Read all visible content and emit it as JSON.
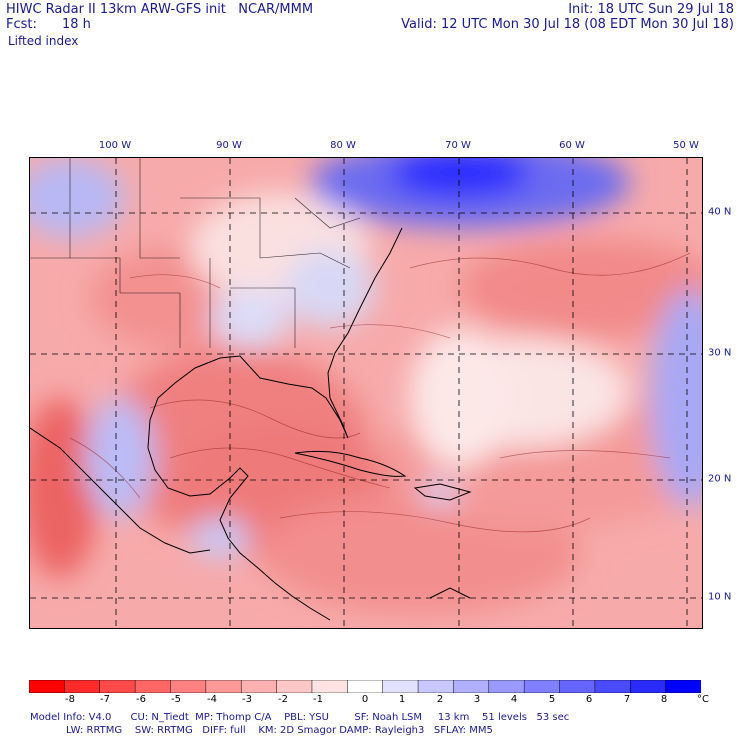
{
  "header": {
    "line1_left": "HIWC Radar II 13km ARW-GFS init   NCAR/MMM",
    "line1_right": "Init: 18 UTC Sun 29 Jul 18",
    "fcst_label": "Fcst:",
    "fcst_value": "18 h",
    "valid": "Valid: 12 UTC Mon 30 Jul 18 (08 EDT Mon 30 Jul 18)",
    "field": "Lifted index"
  },
  "lon_labels": [
    "100 W",
    "90 W",
    "80 W",
    "70 W",
    "60 W",
    "50 W"
  ],
  "lat_labels": [
    "40 N",
    "30 N",
    "20 N",
    "10 N"
  ],
  "colorbar": {
    "colors": [
      "#ff0000",
      "#ff2a2a",
      "#ff4a4a",
      "#ff6666",
      "#ff8080",
      "#ff9999",
      "#ffb0b0",
      "#ffc8c8",
      "#ffe2e2",
      "#ffffff",
      "#e2e2ff",
      "#c8c8ff",
      "#b0b0ff",
      "#9999ff",
      "#8080ff",
      "#6666ff",
      "#4a4aff",
      "#2a2aff",
      "#0000ff"
    ],
    "labels": [
      "-8",
      "-7",
      "-6",
      "-5",
      "-4",
      "-3",
      "-2",
      "-1",
      "0",
      "1",
      "2",
      "3",
      "4",
      "5",
      "6",
      "7",
      "8"
    ],
    "unit": "°C"
  },
  "footer": {
    "line1": "Model Info: V4.0      CU: N_Tiedt  MP: Thomp C/A    PBL: YSU        SF: Noah LSM     13 km    51 levels   53 sec",
    "line2": "LW: RRTMG    SW: RRTMG   DIFF: full    KM: 2D Smagor DAMP: Rayleigh3   SFLAY: MM5"
  }
}
